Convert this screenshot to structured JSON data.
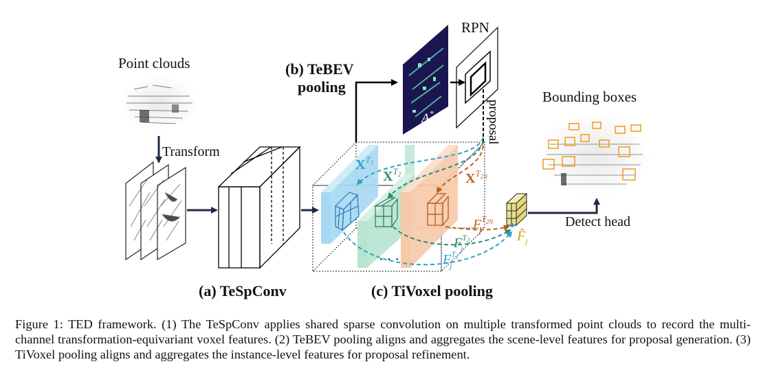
{
  "figure": {
    "labels": {
      "point_clouds": "Point clouds",
      "transform": "Transform",
      "tebev_line1": "(b) TeBEV",
      "tebev_line2": "pooling",
      "rpn": "RPN",
      "a_star": "A*",
      "proposal": "proposal",
      "bounding_boxes": "Bounding boxes",
      "detect_head": "Detect head",
      "tespconv": "(a) TeSpConv",
      "tivoxel": "(c) TiVoxel pooling",
      "x_t1": "X^T1",
      "x_t2": "X^T2",
      "x_t2n": "X^T2N",
      "f_t1": "F_j^T1",
      "f_t2": "F_j^T2",
      "f_t2n": "F_j^T2N",
      "f_hat": "F̂_j",
      "ellipsis": "· · ·"
    },
    "colors": {
      "t1": "#29a3c9",
      "t2": "#2e8b6e",
      "t2n": "#c0601a",
      "hat": "#d4a017",
      "arrow": "#1f2a44",
      "slab_blue": "#a6d8f2",
      "slab_green": "#b7e3cf",
      "slab_orange": "#f6c9a9"
    }
  },
  "caption": {
    "text": "Figure 1: TED framework. (1) The TeSpConv applies shared sparse convolution on multiple transformed point clouds to record the multi-channel transformation-equivariant voxel features. (2) TeBEV pooling aligns and aggregates the scene-level features for proposal generation. (3) TiVoxel pooling aligns and aggregates the instance-level features for proposal refinement."
  }
}
